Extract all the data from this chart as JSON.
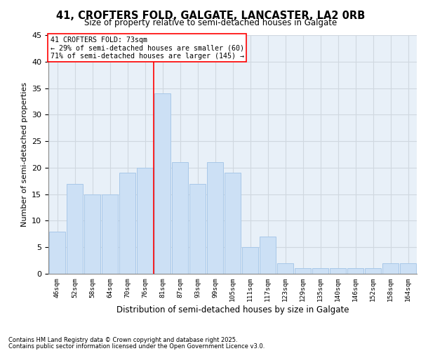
{
  "title": "41, CROFTERS FOLD, GALGATE, LANCASTER, LA2 0RB",
  "subtitle": "Size of property relative to semi-detached houses in Galgate",
  "xlabel": "Distribution of semi-detached houses by size in Galgate",
  "ylabel": "Number of semi-detached properties",
  "categories": [
    "46sqm",
    "52sqm",
    "58sqm",
    "64sqm",
    "70sqm",
    "76sqm",
    "81sqm",
    "87sqm",
    "93sqm",
    "99sqm",
    "105sqm",
    "111sqm",
    "117sqm",
    "123sqm",
    "129sqm",
    "135sqm",
    "140sqm",
    "146sqm",
    "152sqm",
    "158sqm",
    "164sqm"
  ],
  "values": [
    8,
    17,
    15,
    15,
    19,
    20,
    34,
    21,
    17,
    21,
    19,
    5,
    7,
    2,
    1,
    1,
    1,
    1,
    1,
    2,
    2
  ],
  "bar_color": "#cce0f5",
  "bar_edge_color": "#a8c8e8",
  "grid_color": "#d0d8e0",
  "bg_color": "#e8f0f8",
  "red_line_x": 5.5,
  "annotation_title": "41 CROFTERS FOLD: 73sqm",
  "annotation_line1": "← 29% of semi-detached houses are smaller (60)",
  "annotation_line2": "71% of semi-detached houses are larger (145) →",
  "footer1": "Contains HM Land Registry data © Crown copyright and database right 2025.",
  "footer2": "Contains public sector information licensed under the Open Government Licence v3.0.",
  "ylim": [
    0,
    45
  ],
  "yticks": [
    0,
    5,
    10,
    15,
    20,
    25,
    30,
    35,
    40,
    45
  ]
}
